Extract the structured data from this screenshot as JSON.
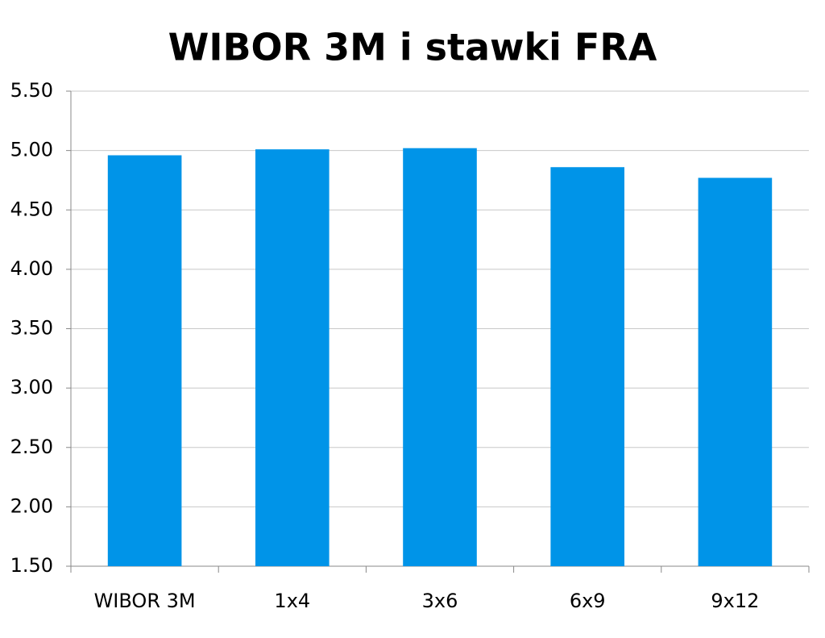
{
  "chart_data": {
    "type": "bar",
    "title": "WIBOR 3M i stawki FRA",
    "categories": [
      "WIBOR 3M",
      "1x4",
      "3x6",
      "6x9",
      "9x12"
    ],
    "values": [
      4.96,
      5.01,
      5.02,
      4.86,
      4.77
    ],
    "color": "#0094e8",
    "ylim": [
      1.5,
      5.5
    ],
    "yticks": [
      {
        "value": 1.5,
        "label": "1.50"
      },
      {
        "value": 2,
        "label": "2.00"
      },
      {
        "value": 2.5,
        "label": "2.50"
      },
      {
        "value": 3,
        "label": "3.00"
      },
      {
        "value": 3.5,
        "label": "3.50"
      },
      {
        "value": 4,
        "label": "4.00"
      },
      {
        "value": 4.5,
        "label": "4.50"
      },
      {
        "value": 5,
        "label": "5.00"
      },
      {
        "value": 5.5,
        "label": "5.50"
      }
    ],
    "grid": true
  }
}
